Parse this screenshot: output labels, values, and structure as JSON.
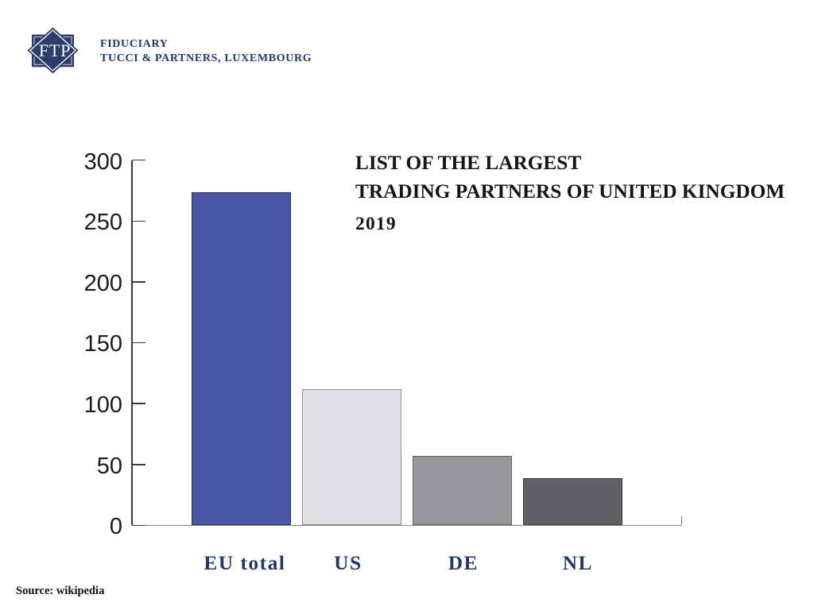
{
  "logo": {
    "monogram": "FTP",
    "line1": "FIDUCIARY",
    "line2": "TUCCI & PARTNERS, LUXEMBOURG",
    "emblem_fill": "#2E3C6C",
    "square_inner_stroke": "#A9B0C5",
    "diamond_inner_stroke": "#FFFFFF",
    "monogram_color": "#FFFFFF",
    "wordmark_color": "#1F3865"
  },
  "chart_data": {
    "type": "bar",
    "title_lines": [
      "LIST OF THE LARGEST",
      "TRADING PARTNERS OF UNITED KINGDOM"
    ],
    "subtitle": "2019",
    "categories": [
      "EU total",
      "US",
      "DE",
      "NL"
    ],
    "values": [
      274,
      112,
      57,
      39
    ],
    "bar_fills": [
      "#4A56A6",
      "#E1E2E5",
      "#96969B",
      "#616165"
    ],
    "bar_borders": [
      "#35363C",
      "#8E8F92",
      "#606065",
      "#3A3A3E"
    ],
    "ylim": [
      0,
      300
    ],
    "yticks": [
      0,
      50,
      100,
      150,
      200,
      250,
      300
    ],
    "xlabel": "",
    "ylabel": "",
    "grid": false,
    "legend": false,
    "category_label_color": "#1F3865",
    "axis_color": "#3A3A3A",
    "baseline_color": "#8A8A8A",
    "tick_label_color": "#1A1A1A"
  },
  "source": {
    "label": "Source: wikipedia"
  }
}
